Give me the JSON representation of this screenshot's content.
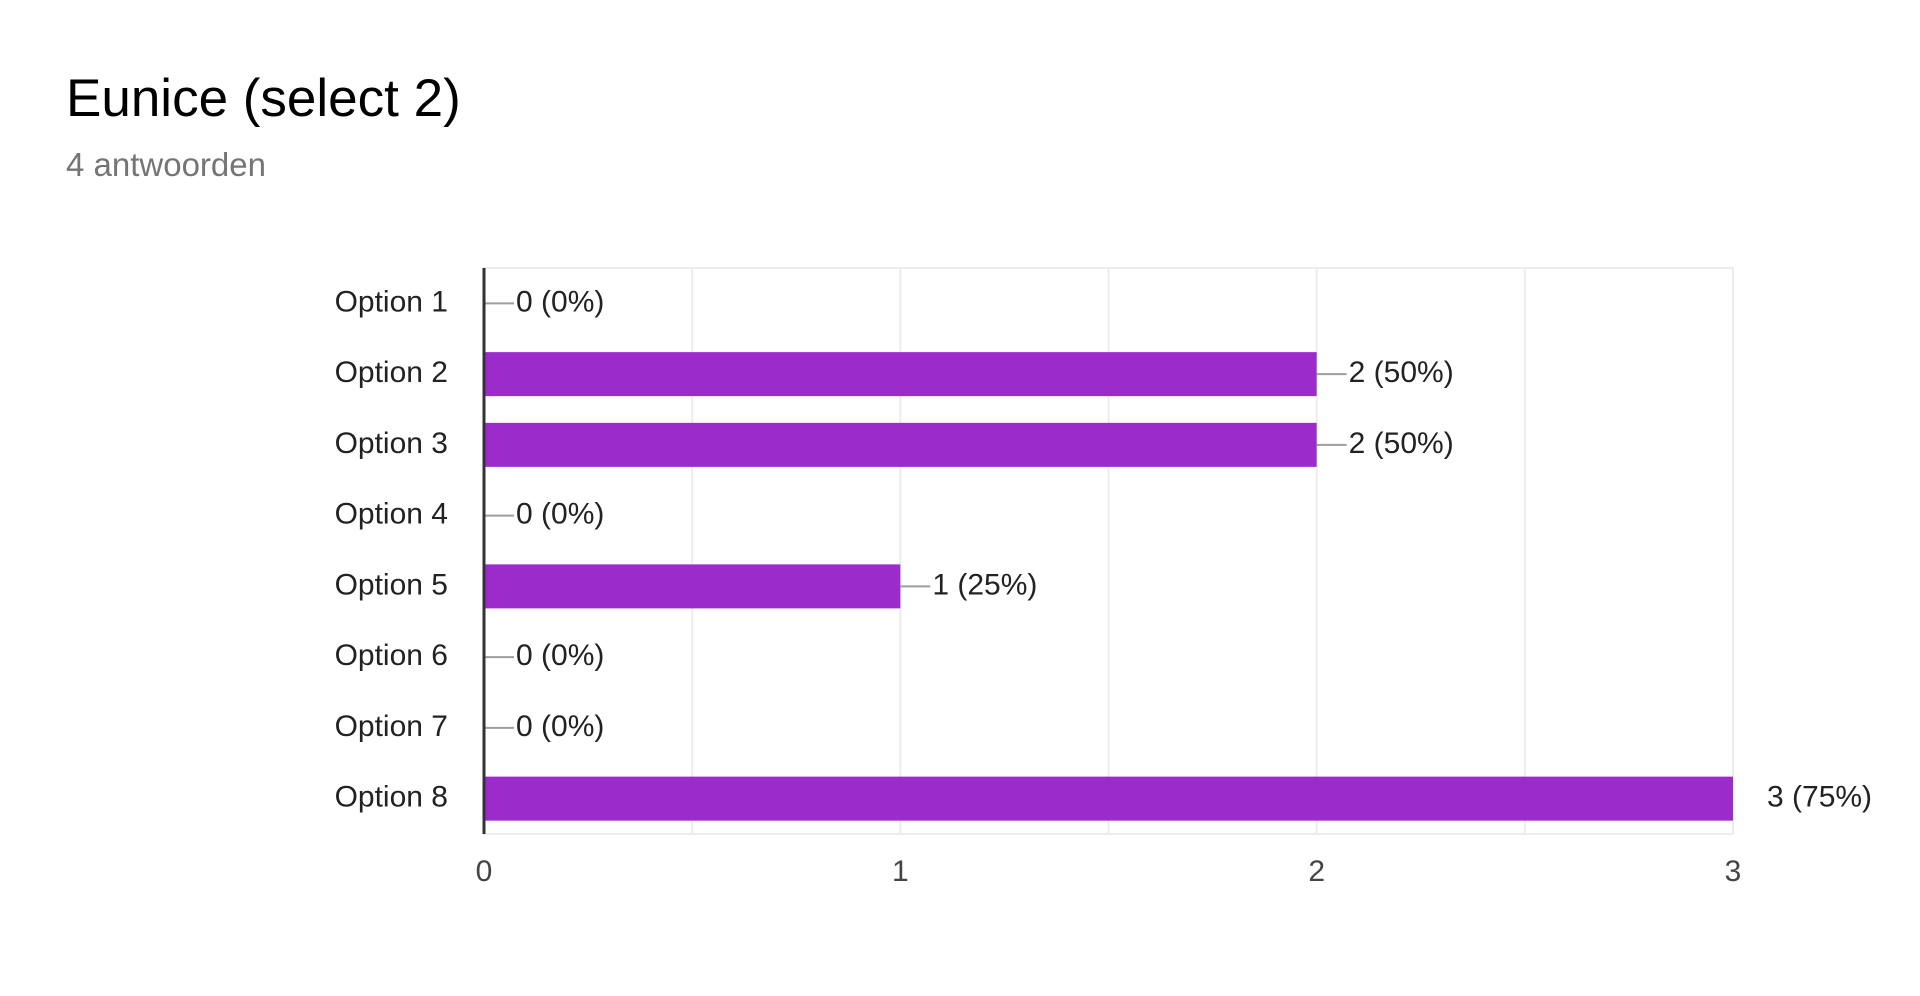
{
  "title": "Eunice (select 2)",
  "subtitle": "4 antwoorden",
  "colors": {
    "bar": "#9c2bcb",
    "grid": "#ececec",
    "axis": "#333333",
    "leader": "#9e9e9e",
    "label": "#222222",
    "tick": "#444444",
    "subtitle": "#757575"
  },
  "chart_data": {
    "type": "bar",
    "orientation": "horizontal",
    "categories": [
      "Option 1",
      "Option 2",
      "Option 3",
      "Option 4",
      "Option 5",
      "Option 6",
      "Option 7",
      "Option 8"
    ],
    "values": [
      0,
      2,
      2,
      0,
      1,
      0,
      0,
      3
    ],
    "data_labels": [
      "0 (0%)",
      "2 (50%)",
      "2 (50%)",
      "0 (0%)",
      "1 (25%)",
      "0 (0%)",
      "0 (0%)",
      "3 (75%)"
    ],
    "x_ticks": [
      0,
      1,
      2,
      3
    ],
    "xlim": [
      0,
      3
    ],
    "grid": true,
    "legend": "none"
  }
}
